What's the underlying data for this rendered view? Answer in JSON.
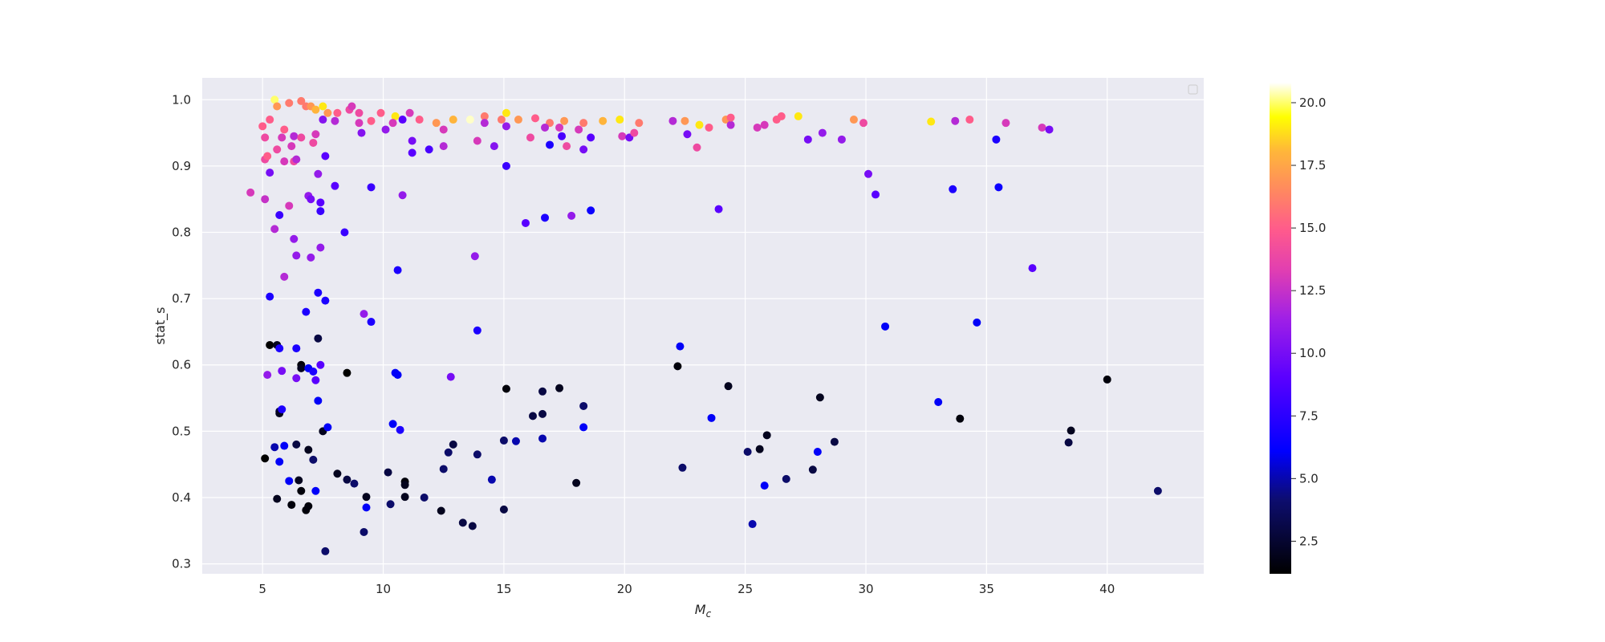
{
  "chart_data": {
    "type": "scatter",
    "title": "",
    "xlabel": "M",
    "xlabel_subscript": "c",
    "ylabel": "stat_s",
    "xlim": [
      2.5,
      44
    ],
    "ylim": [
      0.285,
      1.033
    ],
    "xticks": [
      5,
      10,
      15,
      20,
      25,
      30,
      35,
      40
    ],
    "yticks": [
      0.3,
      0.4,
      0.5,
      0.6,
      0.7,
      0.8,
      0.9,
      1.0
    ],
    "grid": true,
    "legend": "top-right (empty)",
    "colorbar": {
      "colormap": "gnuplot2",
      "range": [
        1.2,
        20.8
      ],
      "ticks": [
        2.5,
        5.0,
        7.5,
        10.0,
        12.5,
        15.0,
        17.5,
        20.0
      ]
    },
    "colors": {
      "axes_background": "#eaeaf2",
      "grid": "#ffffff",
      "text": "#262626"
    },
    "points": [
      {
        "x": 5.5,
        "y": 1.0,
        "c": 20
      },
      {
        "x": 5.3,
        "y": 0.97,
        "c": 15
      },
      {
        "x": 5.6,
        "y": 0.99,
        "c": 17
      },
      {
        "x": 6.1,
        "y": 0.995,
        "c": 16
      },
      {
        "x": 6.6,
        "y": 0.998,
        "c": 16
      },
      {
        "x": 6.8,
        "y": 0.99,
        "c": 16
      },
      {
        "x": 7.0,
        "y": 0.99,
        "c": 17
      },
      {
        "x": 7.2,
        "y": 0.985,
        "c": 18
      },
      {
        "x": 7.5,
        "y": 0.99,
        "c": 19
      },
      {
        "x": 7.7,
        "y": 0.98,
        "c": 17
      },
      {
        "x": 8.1,
        "y": 0.98,
        "c": 15
      },
      {
        "x": 8.6,
        "y": 0.985,
        "c": 14
      },
      {
        "x": 9.0,
        "y": 0.98,
        "c": 14
      },
      {
        "x": 9.9,
        "y": 0.98,
        "c": 15
      },
      {
        "x": 10.5,
        "y": 0.975,
        "c": 19
      },
      {
        "x": 11.1,
        "y": 0.98,
        "c": 13
      },
      {
        "x": 11.5,
        "y": 0.97,
        "c": 15
      },
      {
        "x": 12.2,
        "y": 0.965,
        "c": 17
      },
      {
        "x": 12.9,
        "y": 0.97,
        "c": 18
      },
      {
        "x": 13.6,
        "y": 0.97,
        "c": 20.5
      },
      {
        "x": 14.2,
        "y": 0.975,
        "c": 16
      },
      {
        "x": 14.9,
        "y": 0.97,
        "c": 16
      },
      {
        "x": 15.1,
        "y": 0.98,
        "c": 19
      },
      {
        "x": 15.6,
        "y": 0.97,
        "c": 17
      },
      {
        "x": 16.3,
        "y": 0.972,
        "c": 15
      },
      {
        "x": 16.9,
        "y": 0.965,
        "c": 16
      },
      {
        "x": 17.5,
        "y": 0.968,
        "c": 17
      },
      {
        "x": 18.3,
        "y": 0.965,
        "c": 16
      },
      {
        "x": 19.1,
        "y": 0.968,
        "c": 18
      },
      {
        "x": 19.8,
        "y": 0.97,
        "c": 19
      },
      {
        "x": 20.6,
        "y": 0.965,
        "c": 16
      },
      {
        "x": 22.5,
        "y": 0.968,
        "c": 17
      },
      {
        "x": 23.1,
        "y": 0.962,
        "c": 19
      },
      {
        "x": 24.2,
        "y": 0.97,
        "c": 17
      },
      {
        "x": 26.3,
        "y": 0.97,
        "c": 15
      },
      {
        "x": 27.2,
        "y": 0.975,
        "c": 19
      },
      {
        "x": 29.5,
        "y": 0.97,
        "c": 17
      },
      {
        "x": 32.7,
        "y": 0.967,
        "c": 19
      },
      {
        "x": 34.3,
        "y": 0.97,
        "c": 15
      },
      {
        "x": 5.0,
        "y": 0.96,
        "c": 15
      },
      {
        "x": 5.1,
        "y": 0.943,
        "c": 14
      },
      {
        "x": 5.8,
        "y": 0.943,
        "c": 13
      },
      {
        "x": 5.9,
        "y": 0.955,
        "c": 15
      },
      {
        "x": 6.2,
        "y": 0.93,
        "c": 13
      },
      {
        "x": 6.3,
        "y": 0.945,
        "c": 12
      },
      {
        "x": 6.6,
        "y": 0.943,
        "c": 14
      },
      {
        "x": 7.1,
        "y": 0.935,
        "c": 14
      },
      {
        "x": 7.2,
        "y": 0.948,
        "c": 13
      },
      {
        "x": 7.5,
        "y": 0.97,
        "c": 10.5
      },
      {
        "x": 8.0,
        "y": 0.968,
        "c": 12
      },
      {
        "x": 8.7,
        "y": 0.99,
        "c": 13
      },
      {
        "x": 9.0,
        "y": 0.965,
        "c": 13
      },
      {
        "x": 9.1,
        "y": 0.95,
        "c": 10.5
      },
      {
        "x": 9.5,
        "y": 0.968,
        "c": 15
      },
      {
        "x": 10.1,
        "y": 0.955,
        "c": 11
      },
      {
        "x": 10.4,
        "y": 0.965,
        "c": 13
      },
      {
        "x": 10.8,
        "y": 0.97,
        "c": 9
      },
      {
        "x": 11.2,
        "y": 0.938,
        "c": 10
      },
      {
        "x": 11.2,
        "y": 0.92,
        "c": 9
      },
      {
        "x": 11.9,
        "y": 0.925,
        "c": 8.5
      },
      {
        "x": 12.5,
        "y": 0.955,
        "c": 13
      },
      {
        "x": 12.5,
        "y": 0.93,
        "c": 12
      },
      {
        "x": 13.9,
        "y": 0.938,
        "c": 13
      },
      {
        "x": 14.2,
        "y": 0.965,
        "c": 12
      },
      {
        "x": 14.6,
        "y": 0.93,
        "c": 10.5
      },
      {
        "x": 15.1,
        "y": 0.96,
        "c": 11
      },
      {
        "x": 15.1,
        "y": 0.9,
        "c": 8
      },
      {
        "x": 16.1,
        "y": 0.943,
        "c": 14
      },
      {
        "x": 16.7,
        "y": 0.958,
        "c": 12
      },
      {
        "x": 16.9,
        "y": 0.932,
        "c": 7
      },
      {
        "x": 17.3,
        "y": 0.958,
        "c": 13
      },
      {
        "x": 17.4,
        "y": 0.945,
        "c": 8.5
      },
      {
        "x": 17.6,
        "y": 0.93,
        "c": 14
      },
      {
        "x": 18.1,
        "y": 0.955,
        "c": 13
      },
      {
        "x": 18.3,
        "y": 0.925,
        "c": 10
      },
      {
        "x": 18.6,
        "y": 0.943,
        "c": 9
      },
      {
        "x": 19.9,
        "y": 0.945,
        "c": 13
      },
      {
        "x": 20.2,
        "y": 0.943,
        "c": 10
      },
      {
        "x": 20.4,
        "y": 0.95,
        "c": 14
      },
      {
        "x": 22.0,
        "y": 0.968,
        "c": 12
      },
      {
        "x": 22.6,
        "y": 0.948,
        "c": 10
      },
      {
        "x": 23.0,
        "y": 0.928,
        "c": 14
      },
      {
        "x": 23.5,
        "y": 0.958,
        "c": 15
      },
      {
        "x": 24.4,
        "y": 0.962,
        "c": 12
      },
      {
        "x": 24.4,
        "y": 0.973,
        "c": 15
      },
      {
        "x": 25.5,
        "y": 0.958,
        "c": 13
      },
      {
        "x": 25.8,
        "y": 0.962,
        "c": 13
      },
      {
        "x": 26.5,
        "y": 0.975,
        "c": 15
      },
      {
        "x": 27.6,
        "y": 0.94,
        "c": 10
      },
      {
        "x": 28.2,
        "y": 0.95,
        "c": 11
      },
      {
        "x": 29.0,
        "y": 0.94,
        "c": 11
      },
      {
        "x": 29.9,
        "y": 0.965,
        "c": 14
      },
      {
        "x": 33.7,
        "y": 0.968,
        "c": 12
      },
      {
        "x": 35.8,
        "y": 0.965,
        "c": 13
      },
      {
        "x": 37.3,
        "y": 0.958,
        "c": 13
      },
      {
        "x": 37.6,
        "y": 0.955,
        "c": 10
      },
      {
        "x": 4.5,
        "y": 0.86,
        "c": 13
      },
      {
        "x": 5.1,
        "y": 0.85,
        "c": 12.5
      },
      {
        "x": 5.1,
        "y": 0.91,
        "c": 14
      },
      {
        "x": 5.2,
        "y": 0.915,
        "c": 15
      },
      {
        "x": 5.3,
        "y": 0.89,
        "c": 10
      },
      {
        "x": 5.5,
        "y": 0.805,
        "c": 12
      },
      {
        "x": 5.6,
        "y": 0.925,
        "c": 14
      },
      {
        "x": 5.7,
        "y": 0.826,
        "c": 8
      },
      {
        "x": 5.9,
        "y": 0.907,
        "c": 13
      },
      {
        "x": 6.1,
        "y": 0.84,
        "c": 13
      },
      {
        "x": 6.3,
        "y": 0.907,
        "c": 14
      },
      {
        "x": 6.4,
        "y": 0.91,
        "c": 12
      },
      {
        "x": 6.3,
        "y": 0.79,
        "c": 11
      },
      {
        "x": 6.4,
        "y": 0.765,
        "c": 11
      },
      {
        "x": 5.9,
        "y": 0.733,
        "c": 12
      },
      {
        "x": 6.9,
        "y": 0.855,
        "c": 11
      },
      {
        "x": 7.0,
        "y": 0.85,
        "c": 10
      },
      {
        "x": 7.0,
        "y": 0.762,
        "c": 11
      },
      {
        "x": 7.3,
        "y": 0.888,
        "c": 11
      },
      {
        "x": 7.4,
        "y": 0.845,
        "c": 9
      },
      {
        "x": 7.4,
        "y": 0.832,
        "c": 8
      },
      {
        "x": 7.4,
        "y": 0.777,
        "c": 11
      },
      {
        "x": 7.6,
        "y": 0.915,
        "c": 9
      },
      {
        "x": 8.0,
        "y": 0.87,
        "c": 9
      },
      {
        "x": 8.4,
        "y": 0.8,
        "c": 8
      },
      {
        "x": 9.5,
        "y": 0.868,
        "c": 8
      },
      {
        "x": 10.8,
        "y": 0.856,
        "c": 11
      },
      {
        "x": 13.8,
        "y": 0.764,
        "c": 11
      },
      {
        "x": 15.9,
        "y": 0.814,
        "c": 9
      },
      {
        "x": 16.7,
        "y": 0.822,
        "c": 7
      },
      {
        "x": 17.8,
        "y": 0.825,
        "c": 11
      },
      {
        "x": 18.6,
        "y": 0.833,
        "c": 6.5
      },
      {
        "x": 23.9,
        "y": 0.835,
        "c": 9
      },
      {
        "x": 30.1,
        "y": 0.888,
        "c": 10
      },
      {
        "x": 30.4,
        "y": 0.857,
        "c": 9
      },
      {
        "x": 33.6,
        "y": 0.865,
        "c": 7
      },
      {
        "x": 35.4,
        "y": 0.94,
        "c": 7
      },
      {
        "x": 35.5,
        "y": 0.868,
        "c": 6.5
      },
      {
        "x": 36.9,
        "y": 0.746,
        "c": 9
      },
      {
        "x": 5.3,
        "y": 0.703,
        "c": 7
      },
      {
        "x": 6.8,
        "y": 0.68,
        "c": 7
      },
      {
        "x": 7.3,
        "y": 0.709,
        "c": 7
      },
      {
        "x": 7.6,
        "y": 0.697,
        "c": 7
      },
      {
        "x": 9.2,
        "y": 0.677,
        "c": 11
      },
      {
        "x": 9.5,
        "y": 0.665,
        "c": 7
      },
      {
        "x": 10.6,
        "y": 0.743,
        "c": 7
      },
      {
        "x": 13.9,
        "y": 0.652,
        "c": 7
      },
      {
        "x": 5.3,
        "y": 0.63,
        "c": 1.2
      },
      {
        "x": 5.6,
        "y": 0.63,
        "c": 2
      },
      {
        "x": 5.7,
        "y": 0.625,
        "c": 7
      },
      {
        "x": 6.4,
        "y": 0.625,
        "c": 7
      },
      {
        "x": 6.6,
        "y": 0.6,
        "c": 1.5
      },
      {
        "x": 6.6,
        "y": 0.595,
        "c": 2
      },
      {
        "x": 6.9,
        "y": 0.595,
        "c": 6
      },
      {
        "x": 7.1,
        "y": 0.59,
        "c": 7
      },
      {
        "x": 7.2,
        "y": 0.577,
        "c": 9
      },
      {
        "x": 7.3,
        "y": 0.64,
        "c": 3
      },
      {
        "x": 7.4,
        "y": 0.6,
        "c": 9
      },
      {
        "x": 5.2,
        "y": 0.585,
        "c": 11
      },
      {
        "x": 5.8,
        "y": 0.591,
        "c": 10
      },
      {
        "x": 6.4,
        "y": 0.58,
        "c": 10
      },
      {
        "x": 8.5,
        "y": 0.588,
        "c": 1.2
      },
      {
        "x": 10.5,
        "y": 0.588,
        "c": 6
      },
      {
        "x": 10.6,
        "y": 0.585,
        "c": 6
      },
      {
        "x": 12.8,
        "y": 0.582,
        "c": 10
      },
      {
        "x": 15.1,
        "y": 0.564,
        "c": 1.5
      },
      {
        "x": 16.6,
        "y": 0.56,
        "c": 3
      },
      {
        "x": 17.3,
        "y": 0.565,
        "c": 2
      },
      {
        "x": 22.2,
        "y": 0.598,
        "c": 1.5
      },
      {
        "x": 22.3,
        "y": 0.628,
        "c": 6
      },
      {
        "x": 24.3,
        "y": 0.568,
        "c": 2
      },
      {
        "x": 30.8,
        "y": 0.658,
        "c": 6
      },
      {
        "x": 34.6,
        "y": 0.664,
        "c": 6
      },
      {
        "x": 40.0,
        "y": 0.578,
        "c": 1.5
      },
      {
        "x": 5.7,
        "y": 0.53,
        "c": 3
      },
      {
        "x": 5.7,
        "y": 0.527,
        "c": 2
      },
      {
        "x": 5.8,
        "y": 0.533,
        "c": 7
      },
      {
        "x": 7.3,
        "y": 0.546,
        "c": 6
      },
      {
        "x": 7.5,
        "y": 0.5,
        "c": 2
      },
      {
        "x": 7.7,
        "y": 0.506,
        "c": 6
      },
      {
        "x": 10.4,
        "y": 0.511,
        "c": 6
      },
      {
        "x": 10.7,
        "y": 0.502,
        "c": 7
      },
      {
        "x": 16.6,
        "y": 0.526,
        "c": 3
      },
      {
        "x": 16.2,
        "y": 0.523,
        "c": 3
      },
      {
        "x": 18.3,
        "y": 0.538,
        "c": 4
      },
      {
        "x": 18.3,
        "y": 0.506,
        "c": 6
      },
      {
        "x": 23.6,
        "y": 0.52,
        "c": 6
      },
      {
        "x": 28.1,
        "y": 0.551,
        "c": 2
      },
      {
        "x": 33.0,
        "y": 0.544,
        "c": 6
      },
      {
        "x": 33.9,
        "y": 0.519,
        "c": 1.5
      },
      {
        "x": 38.5,
        "y": 0.501,
        "c": 2
      },
      {
        "x": 5.1,
        "y": 0.459,
        "c": 1.2
      },
      {
        "x": 5.5,
        "y": 0.476,
        "c": 5
      },
      {
        "x": 5.7,
        "y": 0.454,
        "c": 6
      },
      {
        "x": 5.9,
        "y": 0.478,
        "c": 6
      },
      {
        "x": 6.1,
        "y": 0.425,
        "c": 6
      },
      {
        "x": 6.4,
        "y": 0.48,
        "c": 3
      },
      {
        "x": 6.5,
        "y": 0.426,
        "c": 2
      },
      {
        "x": 6.9,
        "y": 0.472,
        "c": 2
      },
      {
        "x": 7.1,
        "y": 0.457,
        "c": 4
      },
      {
        "x": 7.2,
        "y": 0.41,
        "c": 6
      },
      {
        "x": 8.1,
        "y": 0.436,
        "c": 2
      },
      {
        "x": 8.5,
        "y": 0.427,
        "c": 3
      },
      {
        "x": 8.8,
        "y": 0.421,
        "c": 4
      },
      {
        "x": 10.2,
        "y": 0.438,
        "c": 3
      },
      {
        "x": 10.9,
        "y": 0.424,
        "c": 1.5
      },
      {
        "x": 10.9,
        "y": 0.419,
        "c": 2
      },
      {
        "x": 12.5,
        "y": 0.443,
        "c": 4
      },
      {
        "x": 12.7,
        "y": 0.468,
        "c": 4
      },
      {
        "x": 12.9,
        "y": 0.48,
        "c": 3
      },
      {
        "x": 13.9,
        "y": 0.465,
        "c": 4
      },
      {
        "x": 14.5,
        "y": 0.427,
        "c": 5
      },
      {
        "x": 15.0,
        "y": 0.486,
        "c": 4
      },
      {
        "x": 15.5,
        "y": 0.485,
        "c": 5
      },
      {
        "x": 16.6,
        "y": 0.489,
        "c": 5
      },
      {
        "x": 18.0,
        "y": 0.422,
        "c": 2
      },
      {
        "x": 22.4,
        "y": 0.445,
        "c": 4
      },
      {
        "x": 25.1,
        "y": 0.469,
        "c": 4
      },
      {
        "x": 25.6,
        "y": 0.473,
        "c": 2
      },
      {
        "x": 25.9,
        "y": 0.494,
        "c": 2
      },
      {
        "x": 25.8,
        "y": 0.418,
        "c": 6
      },
      {
        "x": 26.7,
        "y": 0.428,
        "c": 4
      },
      {
        "x": 27.8,
        "y": 0.442,
        "c": 3
      },
      {
        "x": 28.0,
        "y": 0.469,
        "c": 6
      },
      {
        "x": 28.7,
        "y": 0.484,
        "c": 3
      },
      {
        "x": 38.4,
        "y": 0.483,
        "c": 3
      },
      {
        "x": 42.1,
        "y": 0.41,
        "c": 4
      },
      {
        "x": 5.6,
        "y": 0.398,
        "c": 2
      },
      {
        "x": 6.2,
        "y": 0.389,
        "c": 1.5
      },
      {
        "x": 6.6,
        "y": 0.41,
        "c": 1.5
      },
      {
        "x": 6.8,
        "y": 0.381,
        "c": 1.5
      },
      {
        "x": 6.9,
        "y": 0.387,
        "c": 1.5
      },
      {
        "x": 7.6,
        "y": 0.319,
        "c": 4
      },
      {
        "x": 9.2,
        "y": 0.348,
        "c": 4
      },
      {
        "x": 9.3,
        "y": 0.385,
        "c": 6
      },
      {
        "x": 9.3,
        "y": 0.401,
        "c": 2
      },
      {
        "x": 10.3,
        "y": 0.39,
        "c": 4
      },
      {
        "x": 10.9,
        "y": 0.401,
        "c": 2
      },
      {
        "x": 11.7,
        "y": 0.4,
        "c": 4
      },
      {
        "x": 12.4,
        "y": 0.38,
        "c": 2
      },
      {
        "x": 13.3,
        "y": 0.362,
        "c": 3
      },
      {
        "x": 13.7,
        "y": 0.357,
        "c": 3
      },
      {
        "x": 15.0,
        "y": 0.382,
        "c": 3
      },
      {
        "x": 25.3,
        "y": 0.36,
        "c": 5
      }
    ]
  }
}
